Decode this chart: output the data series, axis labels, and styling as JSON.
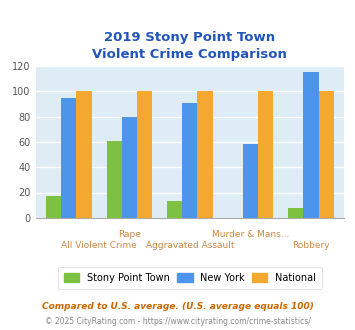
{
  "title_line1": "2019 Stony Point Town",
  "title_line2": "Violent Crime Comparison",
  "title_color": "#2255bb",
  "stony_values": [
    17,
    61,
    13,
    0,
    8
  ],
  "ny_values": [
    95,
    80,
    91,
    58,
    115
  ],
  "national_values": [
    100,
    100,
    100,
    100,
    100
  ],
  "stony_color": "#7dc142",
  "ny_color": "#4d94eb",
  "national_color": "#f5a830",
  "bg_color": "#deedf5",
  "ylim": [
    0,
    120
  ],
  "yticks": [
    0,
    20,
    40,
    60,
    80,
    100,
    120
  ],
  "legend_labels": [
    "Stony Point Town",
    "New York",
    "National"
  ],
  "footnote1": "Compared to U.S. average. (U.S. average equals 100)",
  "footnote2": "© 2025 CityRating.com - https://www.cityrating.com/crime-statistics/",
  "footnote1_color": "#cc6600",
  "footnote2_color": "#888888",
  "label_color": "#cc8844",
  "bar_width": 0.25
}
